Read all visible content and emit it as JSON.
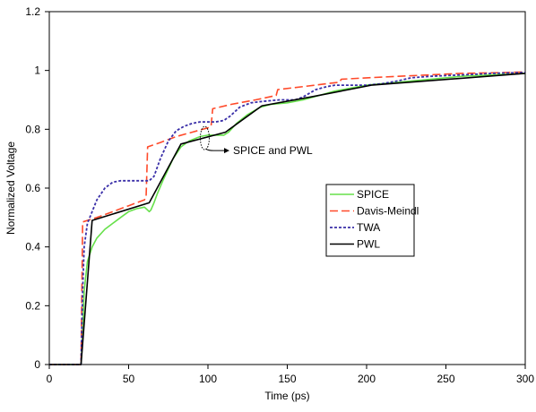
{
  "chart_data": {
    "type": "line",
    "title": "",
    "xlabel": "Time (ps)",
    "ylabel": "Normalized Voltage",
    "xlim": [
      0,
      300
    ],
    "ylim": [
      0,
      1.2
    ],
    "x_ticks": [
      0,
      50,
      100,
      150,
      200,
      250,
      300
    ],
    "y_ticks": [
      0,
      0.2,
      0.4,
      0.6,
      0.8,
      1,
      1.2
    ],
    "x_tick_labels": [
      "0",
      "50",
      "100",
      "150",
      "200",
      "250",
      "300"
    ],
    "y_tick_labels": [
      "0",
      "0.2",
      "0.4",
      "0.6",
      "0.8",
      "1",
      "1.2"
    ],
    "grid": false,
    "legend": {
      "position": "center-right"
    },
    "annotation": {
      "text": "SPICE and PWL",
      "points_to": {
        "x": 98,
        "y": 0.77
      }
    },
    "series": [
      {
        "name": "SPICE",
        "color": "#66e04a",
        "style": "solid",
        "points": [
          [
            0,
            0
          ],
          [
            20,
            0
          ],
          [
            21,
            0.1
          ],
          [
            22,
            0.25
          ],
          [
            24,
            0.35
          ],
          [
            27,
            0.4
          ],
          [
            30,
            0.43
          ],
          [
            35,
            0.46
          ],
          [
            40,
            0.48
          ],
          [
            45,
            0.5
          ],
          [
            50,
            0.52
          ],
          [
            55,
            0.53
          ],
          [
            60,
            0.535
          ],
          [
            62,
            0.525
          ],
          [
            63,
            0.52
          ],
          [
            64,
            0.525
          ],
          [
            66,
            0.55
          ],
          [
            68,
            0.58
          ],
          [
            72,
            0.63
          ],
          [
            78,
            0.7
          ],
          [
            83,
            0.74
          ],
          [
            88,
            0.76
          ],
          [
            95,
            0.775
          ],
          [
            100,
            0.78
          ],
          [
            105,
            0.78
          ],
          [
            110,
            0.78
          ],
          [
            113,
            0.79
          ],
          [
            118,
            0.82
          ],
          [
            125,
            0.85
          ],
          [
            133,
            0.875
          ],
          [
            140,
            0.885
          ],
          [
            150,
            0.89
          ],
          [
            160,
            0.9
          ],
          [
            170,
            0.915
          ],
          [
            180,
            0.93
          ],
          [
            190,
            0.94
          ],
          [
            200,
            0.95
          ],
          [
            220,
            0.96
          ],
          [
            240,
            0.97
          ],
          [
            260,
            0.98
          ],
          [
            280,
            0.985
          ],
          [
            300,
            0.99
          ]
        ]
      },
      {
        "name": "Davis-Meindl",
        "color": "#ff4a2a",
        "style": "dashed",
        "points": [
          [
            0,
            0
          ],
          [
            20,
            0
          ],
          [
            21,
            0.485
          ],
          [
            30,
            0.5
          ],
          [
            40,
            0.52
          ],
          [
            50,
            0.54
          ],
          [
            60,
            0.56
          ],
          [
            61,
            0.57
          ],
          [
            62,
            0.74
          ],
          [
            70,
            0.755
          ],
          [
            80,
            0.775
          ],
          [
            90,
            0.79
          ],
          [
            100,
            0.805
          ],
          [
            102,
            0.81
          ],
          [
            103,
            0.87
          ],
          [
            115,
            0.885
          ],
          [
            130,
            0.9
          ],
          [
            143,
            0.915
          ],
          [
            144,
            0.935
          ],
          [
            160,
            0.945
          ],
          [
            175,
            0.955
          ],
          [
            183,
            0.96
          ],
          [
            184,
            0.97
          ],
          [
            200,
            0.975
          ],
          [
            220,
            0.98
          ],
          [
            240,
            0.985
          ],
          [
            260,
            0.99
          ],
          [
            280,
            0.992
          ],
          [
            300,
            0.995
          ]
        ]
      },
      {
        "name": "TWA",
        "color": "#3a2fa8",
        "style": "dotted",
        "points": [
          [
            0,
            0
          ],
          [
            20,
            0
          ],
          [
            21,
            0.25
          ],
          [
            22,
            0.4
          ],
          [
            24,
            0.48
          ],
          [
            27,
            0.52
          ],
          [
            30,
            0.56
          ],
          [
            35,
            0.6
          ],
          [
            40,
            0.62
          ],
          [
            45,
            0.625
          ],
          [
            50,
            0.625
          ],
          [
            55,
            0.625
          ],
          [
            60,
            0.625
          ],
          [
            63,
            0.625
          ],
          [
            66,
            0.64
          ],
          [
            70,
            0.7
          ],
          [
            75,
            0.76
          ],
          [
            80,
            0.795
          ],
          [
            85,
            0.81
          ],
          [
            90,
            0.82
          ],
          [
            95,
            0.825
          ],
          [
            100,
            0.825
          ],
          [
            105,
            0.825
          ],
          [
            110,
            0.83
          ],
          [
            114,
            0.845
          ],
          [
            120,
            0.875
          ],
          [
            127,
            0.89
          ],
          [
            135,
            0.895
          ],
          [
            145,
            0.9
          ],
          [
            155,
            0.9
          ],
          [
            160,
            0.91
          ],
          [
            168,
            0.935
          ],
          [
            175,
            0.945
          ],
          [
            180,
            0.95
          ],
          [
            190,
            0.95
          ],
          [
            200,
            0.95
          ],
          [
            210,
            0.955
          ],
          [
            220,
            0.965
          ],
          [
            228,
            0.975
          ],
          [
            240,
            0.98
          ],
          [
            260,
            0.985
          ],
          [
            280,
            0.99
          ],
          [
            300,
            0.993
          ]
        ]
      },
      {
        "name": "PWL",
        "color": "#000000",
        "style": "solid",
        "points": [
          [
            0,
            0
          ],
          [
            20,
            0
          ],
          [
            27,
            0.49
          ],
          [
            63,
            0.55
          ],
          [
            83,
            0.75
          ],
          [
            111,
            0.79
          ],
          [
            134,
            0.88
          ],
          [
            165,
            0.91
          ],
          [
            203,
            0.95
          ],
          [
            300,
            0.99
          ]
        ]
      }
    ]
  }
}
